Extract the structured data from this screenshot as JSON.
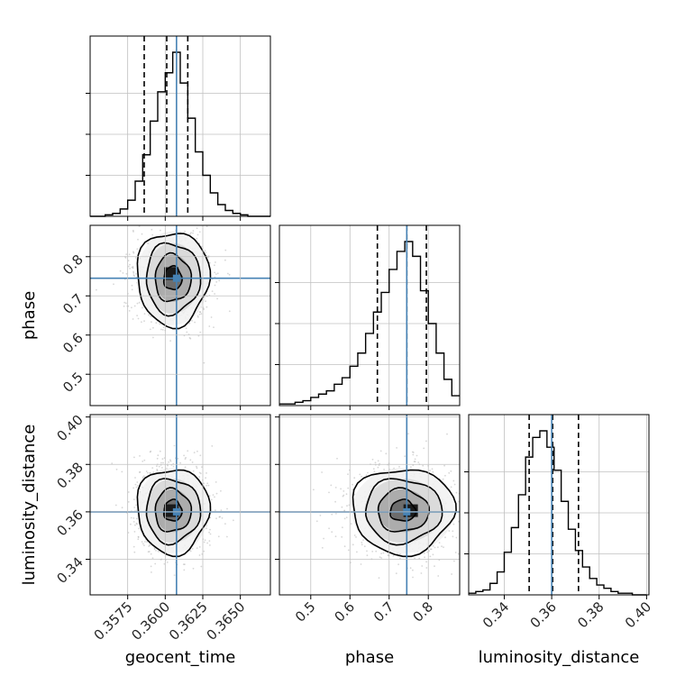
{
  "chart_data": {
    "type": "corner",
    "parameters": [
      "geocent_time",
      "phase",
      "luminosity_distance"
    ],
    "truths": [
      0.36075,
      0.745,
      0.36
    ],
    "colors": {
      "truth": "#4682b4",
      "histogram": "#000000",
      "grid": "#c0c0c0",
      "scatter": "#8c8c8c"
    },
    "grid": true,
    "axes": {
      "geocent_time": {
        "range": [
          0.355,
          0.367
        ],
        "ticks": [
          0.3575,
          0.36,
          0.3625,
          0.365
        ],
        "tick_labels": [
          "0.3575",
          "0.3600",
          "0.3625",
          "0.3650"
        ]
      },
      "phase": {
        "range": [
          0.42,
          0.88
        ],
        "ticks": [
          0.5,
          0.6,
          0.7,
          0.8
        ],
        "tick_labels": [
          "0.5",
          "0.6",
          "0.7",
          "0.8"
        ]
      },
      "luminosity_distance": {
        "range": [
          0.325,
          0.401
        ],
        "ticks": [
          0.34,
          0.36,
          0.38,
          0.4
        ],
        "tick_labels": [
          "0.34",
          "0.36",
          "0.38",
          "0.40"
        ]
      }
    },
    "marginals": [
      {
        "parameter": "geocent_time",
        "quantiles": [
          0.3586,
          0.3601,
          0.3615
        ],
        "bin_edges": [
          0.355,
          0.3555,
          0.356,
          0.3565,
          0.357,
          0.3575,
          0.358,
          0.3585,
          0.359,
          0.3595,
          0.36,
          0.3605,
          0.361,
          0.3615,
          0.362,
          0.3625,
          0.363,
          0.3635,
          0.364,
          0.3645,
          0.365,
          0.3655,
          0.366,
          0.3665,
          0.367
        ],
        "counts": [
          0,
          0,
          1,
          2,
          5,
          11,
          24,
          42,
          65,
          85,
          98,
          112,
          91,
          67,
          44,
          28,
          16,
          8,
          4,
          2,
          1,
          0,
          0,
          0
        ]
      },
      {
        "parameter": "phase",
        "quantiles": [
          0.67,
          0.745,
          0.795
        ],
        "bin_edges": [
          0.42,
          0.44,
          0.46,
          0.48,
          0.5,
          0.52,
          0.54,
          0.56,
          0.58,
          0.6,
          0.62,
          0.64,
          0.66,
          0.68,
          0.7,
          0.72,
          0.74,
          0.76,
          0.78,
          0.8,
          0.82,
          0.84,
          0.86,
          0.88
        ],
        "counts": [
          1,
          1,
          2,
          3,
          5,
          7,
          9,
          13,
          17,
          24,
          32,
          44,
          57,
          69,
          83,
          94,
          100,
          91,
          70,
          50,
          32,
          16,
          6
        ]
      },
      {
        "parameter": "luminosity_distance",
        "quantiles": [
          0.3505,
          0.3604,
          0.3713
        ],
        "bin_edges": [
          0.325,
          0.328,
          0.331,
          0.334,
          0.337,
          0.34,
          0.343,
          0.346,
          0.349,
          0.352,
          0.355,
          0.358,
          0.361,
          0.364,
          0.367,
          0.37,
          0.373,
          0.376,
          0.379,
          0.382,
          0.385,
          0.388,
          0.391,
          0.394,
          0.397,
          0.4
        ],
        "counts": [
          1,
          2,
          3,
          7,
          14,
          26,
          41,
          61,
          84,
          96,
          100,
          90,
          76,
          57,
          40,
          27,
          17,
          10,
          6,
          4,
          2,
          1,
          1,
          0,
          0
        ]
      }
    ],
    "joint": [
      {
        "x": "geocent_time",
        "y": "phase",
        "mean": [
          0.3605,
          0.745
        ],
        "sd": [
          0.0012,
          0.06
        ],
        "mode": [
          0.3604,
          0.757
        ],
        "contour_radii_sigma": [
          0.5,
          1.0,
          1.5,
          2.0
        ]
      },
      {
        "x": "geocent_time",
        "y": "luminosity_distance",
        "mean": [
          0.3605,
          0.3605
        ],
        "sd": [
          0.0012,
          0.009
        ],
        "mode": [
          0.3604,
          0.3605
        ],
        "contour_radii_sigma": [
          0.5,
          1.0,
          1.5,
          2.0
        ]
      },
      {
        "x": "phase",
        "y": "luminosity_distance",
        "mean": [
          0.735,
          0.3605
        ],
        "sd": [
          0.065,
          0.009
        ],
        "mode": [
          0.755,
          0.3605
        ],
        "contour_radii_sigma": [
          0.5,
          1.0,
          1.5,
          2.0
        ]
      }
    ]
  }
}
